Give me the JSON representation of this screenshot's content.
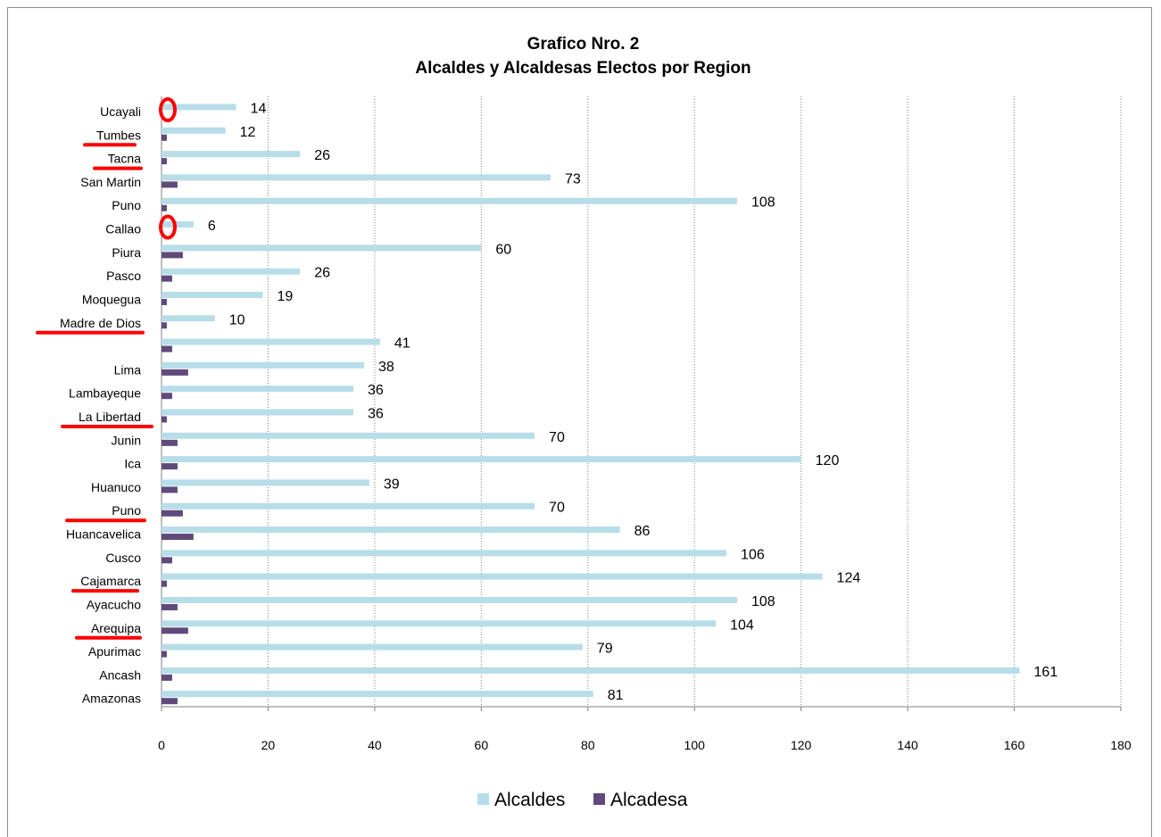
{
  "chart_data": {
    "type": "bar",
    "orientation": "horizontal",
    "title": "Grafico Nro. 2",
    "subtitle": "Alcaldes y Alcaldesas Electos por Region",
    "categories": [
      "Ucayali",
      "Tumbes",
      "Tacna",
      "San Martin",
      "Puno",
      "Callao",
      "Piura",
      "Pasco",
      "Moquegua",
      "Madre de Dios",
      "",
      "Lima",
      "Lambayeque",
      "La Libertad",
      "Junin",
      "Ica",
      "Huanuco",
      "Puno",
      "Huancavelica",
      "Cusco",
      "Cajamarca",
      "Ayacucho",
      "Arequipa",
      "Apurimac",
      "Ancash",
      "Amazonas"
    ],
    "series": [
      {
        "name": "Alcaldes",
        "color": "#b7dde8",
        "values": [
          14,
          12,
          26,
          73,
          108,
          6,
          60,
          26,
          19,
          10,
          41,
          38,
          36,
          36,
          70,
          120,
          39,
          70,
          86,
          106,
          124,
          108,
          104,
          79,
          161,
          81
        ]
      },
      {
        "name": "Alcadesa",
        "color": "#604a7b",
        "values": [
          0,
          1,
          1,
          3,
          1,
          0,
          4,
          2,
          1,
          1,
          2,
          5,
          2,
          1,
          3,
          3,
          3,
          4,
          6,
          2,
          1,
          3,
          5,
          1,
          2,
          3
        ]
      }
    ],
    "data_labels": [
      "14",
      "12",
      "26",
      "73",
      "108",
      "6",
      "60",
      "26",
      "19",
      "10",
      "41",
      "38",
      "36",
      "36",
      "70",
      "120",
      "39",
      "70",
      "86",
      "106",
      "124",
      "108",
      "104",
      "79",
      "161",
      "81"
    ],
    "x_ticks": [
      "0",
      "20",
      "40",
      "60",
      "80",
      "100",
      "120",
      "140",
      "160",
      "180"
    ],
    "xlim": [
      0,
      180
    ],
    "grid": "vertical-dotted",
    "legend": "bottom",
    "annotations": {
      "circled": [
        "Ucayali",
        "Callao"
      ],
      "underlined": [
        "Tumbes",
        "Tacna",
        "Madre de Dios",
        "La Libertad",
        "Puno",
        "Cajamarca",
        "Arequipa"
      ],
      "marker_color": "#ff0000"
    }
  }
}
